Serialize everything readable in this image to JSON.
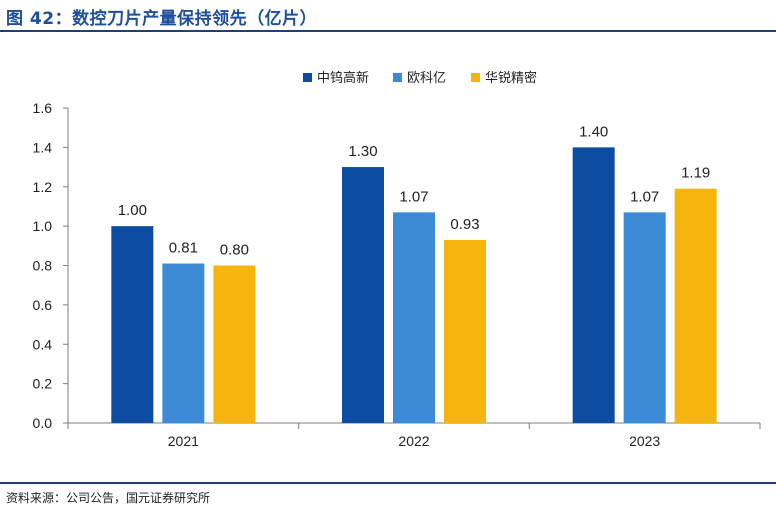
{
  "figure": {
    "title": "图 42：数控刀片产量保持领先（亿片）",
    "source": "资料来源：公司公告，国元证券研究所"
  },
  "chart_data": {
    "type": "bar",
    "title": "",
    "xlabel": "",
    "ylabel": "",
    "categories": [
      "2021",
      "2022",
      "2023"
    ],
    "series": [
      {
        "name": "中钨高新",
        "values": [
          1.0,
          1.3,
          1.4
        ],
        "labels": [
          "1.00",
          "1.30",
          "1.40"
        ],
        "color": "#0c4da2"
      },
      {
        "name": "欧科亿",
        "values": [
          0.81,
          1.07,
          1.07
        ],
        "labels": [
          "0.81",
          "1.07",
          "1.07"
        ],
        "color": "#3d8ad6"
      },
      {
        "name": "华锐精密",
        "values": [
          0.8,
          0.93,
          1.19
        ],
        "labels": [
          "0.80",
          "0.93",
          "1.19"
        ],
        "color": "#f5b50d"
      }
    ],
    "ylim": [
      0,
      1.6
    ],
    "yticks": [
      "0.0",
      "0.2",
      "0.4",
      "0.6",
      "0.8",
      "1.0",
      "1.2",
      "1.4",
      "1.6"
    ],
    "grid": false,
    "legend_position": "top-center"
  }
}
